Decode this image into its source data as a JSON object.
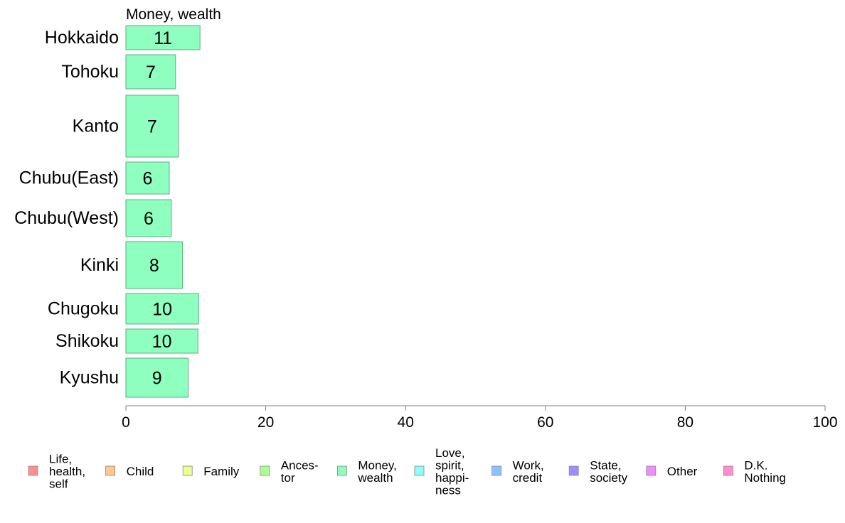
{
  "chart_data": {
    "type": "bar",
    "orientation": "horizontal",
    "title": "Money, wealth",
    "categories": [
      "Hokkaido",
      "Tohoku",
      "Kanto",
      "Chubu(East)",
      "Chubu(West)",
      "Kinki",
      "Chugoku",
      "Shikoku",
      "Kyushu"
    ],
    "series": [
      {
        "name": "Money, wealth",
        "values": [
          11,
          7,
          7,
          6,
          6,
          8,
          10,
          10,
          9
        ],
        "display_values": [
          10.6,
          7.1,
          7.5,
          6.2,
          6.5,
          8.1,
          10.4,
          10.3,
          8.9
        ]
      }
    ],
    "bar_color": "#8fffc0",
    "xlim": [
      0,
      100
    ],
    "xticks": [
      "0",
      "20",
      "40",
      "60",
      "80",
      "100"
    ],
    "grid": false,
    "legend_position": "bottom",
    "legend": [
      {
        "lines": [
          "Life,",
          "health,",
          "self"
        ],
        "color": "#ff8f8f"
      },
      {
        "lines": [
          "Child"
        ],
        "color": "#ffc88f"
      },
      {
        "lines": [
          "Family"
        ],
        "color": "#eeff8f"
      },
      {
        "lines": [
          "Ances-",
          "tor"
        ],
        "color": "#a9ff8f"
      },
      {
        "lines": [
          "Money,",
          "wealth"
        ],
        "color": "#8fffc0"
      },
      {
        "lines": [
          "Love,",
          "spirit,",
          "happi-",
          "ness"
        ],
        "color": "#8ffff6"
      },
      {
        "lines": [
          "Work,",
          "credit"
        ],
        "color": "#8fbfff"
      },
      {
        "lines": [
          "State,",
          "society"
        ],
        "color": "#9b8fff"
      },
      {
        "lines": [
          "Other"
        ],
        "color": "#ef8fff"
      },
      {
        "lines": [
          "D.K.",
          "Nothing"
        ],
        "color": "#ff8fcf"
      }
    ]
  }
}
